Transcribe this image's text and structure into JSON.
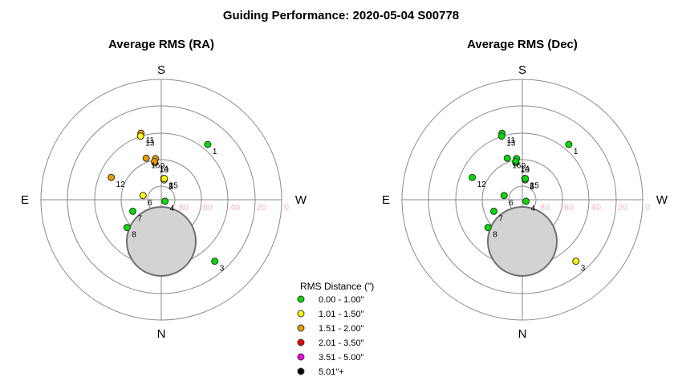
{
  "title": "Guiding Performance: 2020-05-04 S00778",
  "chart_data": [
    {
      "type": "polar-scatter",
      "title": "Average RMS (RA)",
      "compass": {
        "top": "S",
        "bottom": "N",
        "left": "E",
        "right": "W"
      },
      "radial_axis": "altitude",
      "ring_labels": [
        "80",
        "60",
        "40",
        "20",
        "0"
      ],
      "points": [
        {
          "label": "1",
          "az": 220,
          "alt": 36,
          "category": 0
        },
        {
          "label": "2",
          "az": 187,
          "alt": 74,
          "category": 1
        },
        {
          "label": "3",
          "az": 319,
          "alt": 29,
          "category": 0
        },
        {
          "label": "4",
          "az": 292,
          "alt": 87,
          "category": 0
        },
        {
          "label": "5",
          "az": 188,
          "alt": 75,
          "category": 1
        },
        {
          "label": "6",
          "az": 103,
          "alt": 76,
          "category": 1
        },
        {
          "label": "7",
          "az": 68,
          "alt": 67,
          "category": 0
        },
        {
          "label": "8",
          "az": 51,
          "alt": 57,
          "category": 0
        },
        {
          "label": "9",
          "az": 172,
          "alt": 59,
          "category": 2
        },
        {
          "label": "10",
          "az": 170,
          "alt": 62,
          "category": 2
        },
        {
          "label": "11",
          "az": 163,
          "alt": 38,
          "category": 2
        },
        {
          "label": "12",
          "az": 114,
          "alt": 49,
          "category": 2
        },
        {
          "label": "13",
          "az": 162,
          "alt": 40,
          "category": 1
        },
        {
          "label": "14",
          "az": 170,
          "alt": 61,
          "category": 2
        },
        {
          "label": "15",
          "az": 188,
          "alt": 74,
          "category": 1
        },
        {
          "label": "16",
          "az": 160,
          "alt": 57,
          "category": 2
        }
      ]
    },
    {
      "type": "polar-scatter",
      "title": "Average RMS (Dec)",
      "compass": {
        "top": "S",
        "bottom": "N",
        "left": "E",
        "right": "W"
      },
      "radial_axis": "altitude",
      "ring_labels": [
        "80",
        "60",
        "40",
        "20",
        "0"
      ],
      "points": [
        {
          "label": "1",
          "az": 220,
          "alt": 36,
          "category": 0
        },
        {
          "label": "2",
          "az": 187,
          "alt": 74,
          "category": 0
        },
        {
          "label": "3",
          "az": 319,
          "alt": 29,
          "category": 1
        },
        {
          "label": "4",
          "az": 292,
          "alt": 87,
          "category": 0
        },
        {
          "label": "5",
          "az": 188,
          "alt": 75,
          "category": 0
        },
        {
          "label": "6",
          "az": 103,
          "alt": 76,
          "category": 0
        },
        {
          "label": "7",
          "az": 68,
          "alt": 67,
          "category": 0
        },
        {
          "label": "8",
          "az": 51,
          "alt": 57,
          "category": 0
        },
        {
          "label": "9",
          "az": 172,
          "alt": 59,
          "category": 0
        },
        {
          "label": "10",
          "az": 170,
          "alt": 62,
          "category": 0
        },
        {
          "label": "11",
          "az": 163,
          "alt": 38,
          "category": 0
        },
        {
          "label": "12",
          "az": 114,
          "alt": 49,
          "category": 0
        },
        {
          "label": "13",
          "az": 162,
          "alt": 40,
          "category": 0
        },
        {
          "label": "14",
          "az": 170,
          "alt": 61,
          "category": 0
        },
        {
          "label": "15",
          "az": 188,
          "alt": 74,
          "category": 0
        },
        {
          "label": "16",
          "az": 160,
          "alt": 57,
          "category": 0
        }
      ]
    }
  ],
  "legend": {
    "title": "RMS Distance (\")",
    "placement": "bottom-center",
    "items": [
      {
        "label": "0.00 - 1.00\"",
        "color": "#00dd00"
      },
      {
        "label": "1.01 - 1.50\"",
        "color": "#ffff00"
      },
      {
        "label": "1.51 - 2.00\"",
        "color": "#ee9900"
      },
      {
        "label": "2.01 - 3.50\"",
        "color": "#ee0000"
      },
      {
        "label": "3.51 - 5.00\"",
        "color": "#ee00ee"
      },
      {
        "label": "5.01\"+",
        "color": "#000000"
      }
    ]
  }
}
